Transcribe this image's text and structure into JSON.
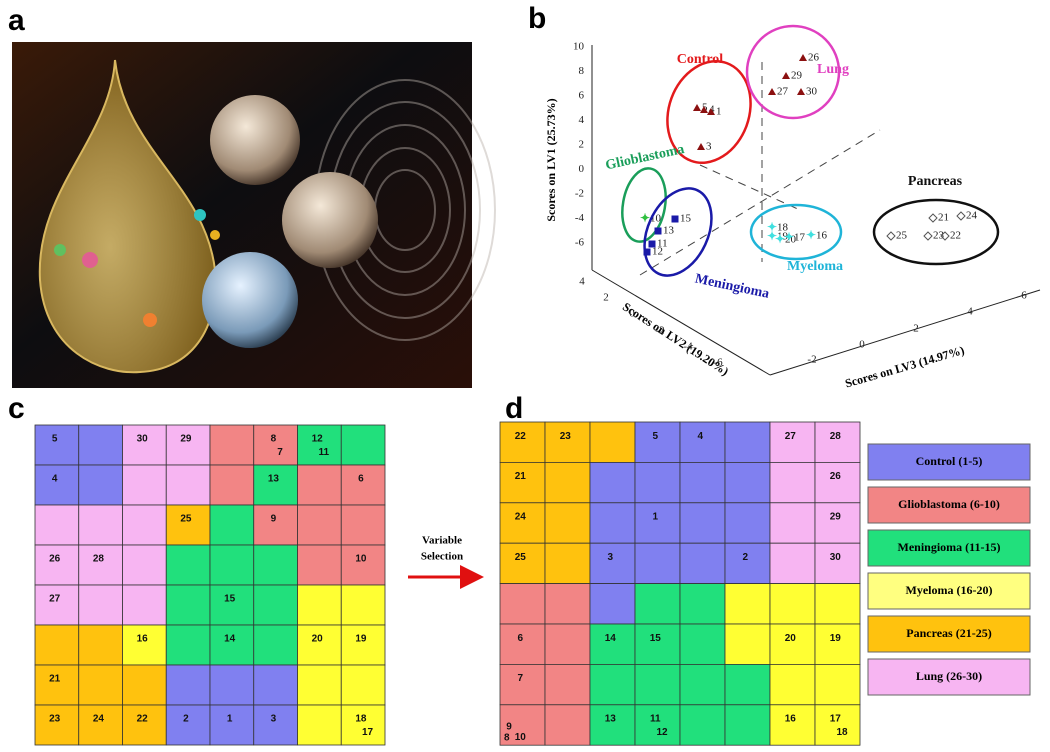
{
  "panels": {
    "a": {
      "label": "a"
    },
    "b": {
      "label": "b",
      "axes": {
        "lv1": "Scores on LV1 (25.73%)",
        "lv2": "Scores on LV2 (19.20%)",
        "lv3": "Scores on LV3 (14.97%)",
        "lv1_ticks": [
          "10",
          "8",
          "6",
          "4",
          "2",
          "0",
          "-2",
          "-4",
          "-6"
        ],
        "lv2_ticks": [
          "4",
          "2",
          "0",
          "-2",
          "-4",
          "-6"
        ],
        "lv3_ticks": [
          "-2",
          "0",
          "2",
          "4",
          "6"
        ]
      },
      "groups": [
        {
          "name": "Control",
          "color": "#e31a1c",
          "points": [
            "5",
            "4",
            "1",
            "3"
          ]
        },
        {
          "name": "Lung",
          "color": "#e040c0",
          "points": [
            "26",
            "29",
            "27",
            "30"
          ]
        },
        {
          "name": "Glioblastoma",
          "color": "#1a9e5a",
          "points": [
            "10"
          ]
        },
        {
          "name": "Meningioma",
          "color": "#1a1aa8",
          "points": [
            "15",
            "13",
            "11",
            "12"
          ]
        },
        {
          "name": "Myeloma",
          "color": "#1fb4d8",
          "points": [
            "18",
            "19",
            "20",
            "17",
            "16"
          ]
        },
        {
          "name": "Pancreas",
          "color": "#111111",
          "points": [
            "21",
            "24",
            "25",
            "23",
            "22"
          ]
        }
      ]
    },
    "c": {
      "label": "c",
      "grid": [
        [
          {
            "c": "#8080f0",
            "t": [
              "5"
            ]
          },
          {
            "c": "#8080f0"
          },
          {
            "c": "#f7b5f2",
            "t": [
              "30"
            ]
          },
          {
            "c": "#f7b5f2",
            "t": [
              "29"
            ]
          },
          {
            "c": "#f28585"
          },
          {
            "c": "#f28585",
            "t": [
              "8",
              "7"
            ]
          },
          {
            "c": "#21e07c",
            "t": [
              "12",
              "11"
            ]
          },
          {
            "c": "#21e07c"
          }
        ],
        [
          {
            "c": "#8080f0",
            "t": [
              "4"
            ]
          },
          {
            "c": "#8080f0"
          },
          {
            "c": "#f7b5f2"
          },
          {
            "c": "#f7b5f2"
          },
          {
            "c": "#f28585"
          },
          {
            "c": "#21e07c",
            "t": [
              "13"
            ]
          },
          {
            "c": "#f28585"
          },
          {
            "c": "#f28585",
            "t": [
              "6"
            ]
          }
        ],
        [
          {
            "c": "#f7b5f2"
          },
          {
            "c": "#f7b5f2"
          },
          {
            "c": "#f7b5f2"
          },
          {
            "c": "#ffc20e",
            "t": [
              "25"
            ]
          },
          {
            "c": "#21e07c"
          },
          {
            "c": "#f28585",
            "t": [
              "9"
            ]
          },
          {
            "c": "#f28585"
          },
          {
            "c": "#f28585"
          }
        ],
        [
          {
            "c": "#f7b5f2",
            "t": [
              "26"
            ]
          },
          {
            "c": "#f7b5f2",
            "t": [
              "28"
            ]
          },
          {
            "c": "#f7b5f2"
          },
          {
            "c": "#21e07c"
          },
          {
            "c": "#21e07c"
          },
          {
            "c": "#21e07c"
          },
          {
            "c": "#f28585"
          },
          {
            "c": "#f28585",
            "t": [
              "10"
            ]
          }
        ],
        [
          {
            "c": "#f7b5f2",
            "t": [
              "27"
            ]
          },
          {
            "c": "#f7b5f2"
          },
          {
            "c": "#f7b5f2"
          },
          {
            "c": "#21e07c"
          },
          {
            "c": "#21e07c",
            "t": [
              "15"
            ]
          },
          {
            "c": "#21e07c"
          },
          {
            "c": "#ffff33"
          },
          {
            "c": "#ffff33"
          }
        ],
        [
          {
            "c": "#ffc20e"
          },
          {
            "c": "#ffc20e"
          },
          {
            "c": "#ffff33",
            "t": [
              "16"
            ]
          },
          {
            "c": "#21e07c"
          },
          {
            "c": "#21e07c",
            "t": [
              "14"
            ]
          },
          {
            "c": "#21e07c"
          },
          {
            "c": "#ffff33",
            "t": [
              "20"
            ]
          },
          {
            "c": "#ffff33",
            "t": [
              "19"
            ]
          }
        ],
        [
          {
            "c": "#ffc20e",
            "t": [
              "21"
            ]
          },
          {
            "c": "#ffc20e"
          },
          {
            "c": "#ffc20e"
          },
          {
            "c": "#8080f0"
          },
          {
            "c": "#8080f0"
          },
          {
            "c": "#8080f0"
          },
          {
            "c": "#ffff33"
          },
          {
            "c": "#ffff33"
          }
        ],
        [
          {
            "c": "#ffc20e",
            "t": [
              "23"
            ]
          },
          {
            "c": "#ffc20e",
            "t": [
              "24"
            ]
          },
          {
            "c": "#ffc20e",
            "t": [
              "22"
            ]
          },
          {
            "c": "#8080f0",
            "t": [
              "2"
            ]
          },
          {
            "c": "#8080f0",
            "t": [
              "1"
            ]
          },
          {
            "c": "#8080f0",
            "t": [
              "3"
            ]
          },
          {
            "c": "#ffff33"
          },
          {
            "c": "#ffff33",
            "t": [
              "18",
              "17"
            ]
          }
        ]
      ]
    },
    "arrow": {
      "text": [
        "Variable",
        "Selection"
      ]
    },
    "d": {
      "label": "d",
      "grid": [
        [
          {
            "c": "#ffc20e",
            "t": [
              "22"
            ]
          },
          {
            "c": "#ffc20e",
            "t": [
              "23"
            ]
          },
          {
            "c": "#ffc20e"
          },
          {
            "c": "#8080f0",
            "t": [
              "5"
            ]
          },
          {
            "c": "#8080f0",
            "t": [
              "4"
            ]
          },
          {
            "c": "#8080f0"
          },
          {
            "c": "#f7b5f2",
            "t": [
              "27"
            ]
          },
          {
            "c": "#f7b5f2",
            "t": [
              "28"
            ]
          }
        ],
        [
          {
            "c": "#ffc20e",
            "t": [
              "21"
            ]
          },
          {
            "c": "#ffc20e"
          },
          {
            "c": "#8080f0"
          },
          {
            "c": "#8080f0"
          },
          {
            "c": "#8080f0"
          },
          {
            "c": "#8080f0"
          },
          {
            "c": "#f7b5f2"
          },
          {
            "c": "#f7b5f2",
            "t": [
              "26"
            ]
          }
        ],
        [
          {
            "c": "#ffc20e",
            "t": [
              "24"
            ]
          },
          {
            "c": "#ffc20e"
          },
          {
            "c": "#8080f0"
          },
          {
            "c": "#8080f0",
            "t": [
              "1"
            ]
          },
          {
            "c": "#8080f0"
          },
          {
            "c": "#8080f0"
          },
          {
            "c": "#f7b5f2"
          },
          {
            "c": "#f7b5f2",
            "t": [
              "29"
            ]
          }
        ],
        [
          {
            "c": "#ffc20e",
            "t": [
              "25"
            ]
          },
          {
            "c": "#ffc20e"
          },
          {
            "c": "#8080f0",
            "t": [
              "3"
            ]
          },
          {
            "c": "#8080f0"
          },
          {
            "c": "#8080f0"
          },
          {
            "c": "#8080f0",
            "t": [
              "2"
            ]
          },
          {
            "c": "#f7b5f2"
          },
          {
            "c": "#f7b5f2",
            "t": [
              "30"
            ]
          }
        ],
        [
          {
            "c": "#f28585"
          },
          {
            "c": "#f28585"
          },
          {
            "c": "#8080f0"
          },
          {
            "c": "#21e07c"
          },
          {
            "c": "#21e07c"
          },
          {
            "c": "#ffff33"
          },
          {
            "c": "#ffff33"
          },
          {
            "c": "#ffff33"
          }
        ],
        [
          {
            "c": "#f28585",
            "t": [
              "6"
            ]
          },
          {
            "c": "#f28585"
          },
          {
            "c": "#21e07c",
            "t": [
              "14"
            ]
          },
          {
            "c": "#21e07c",
            "t": [
              "15"
            ]
          },
          {
            "c": "#21e07c"
          },
          {
            "c": "#ffff33"
          },
          {
            "c": "#ffff33",
            "t": [
              "20"
            ]
          },
          {
            "c": "#ffff33",
            "t": [
              "19"
            ]
          }
        ],
        [
          {
            "c": "#f28585",
            "t": [
              "7"
            ]
          },
          {
            "c": "#f28585"
          },
          {
            "c": "#21e07c"
          },
          {
            "c": "#21e07c"
          },
          {
            "c": "#21e07c"
          },
          {
            "c": "#21e07c"
          },
          {
            "c": "#ffff33"
          },
          {
            "c": "#ffff33"
          }
        ],
        [
          {
            "c": "#f28585",
            "t": [
              "9",
              "8",
              "10"
            ]
          },
          {
            "c": "#f28585"
          },
          {
            "c": "#21e07c",
            "t": [
              "13"
            ]
          },
          {
            "c": "#21e07c",
            "t": [
              "11",
              "12"
            ]
          },
          {
            "c": "#21e07c"
          },
          {
            "c": "#21e07c"
          },
          {
            "c": "#ffff33",
            "t": [
              "16"
            ]
          },
          {
            "c": "#ffff33",
            "t": [
              "17",
              "18"
            ]
          }
        ]
      ],
      "legend": [
        {
          "text": "Control (1-5)",
          "color": "#8080f0"
        },
        {
          "text": "Glioblastoma (6-10)",
          "color": "#f28585"
        },
        {
          "text": "Meningioma (11-15)",
          "color": "#21e07c"
        },
        {
          "text": "Myeloma (16-20)",
          "color": "#ffff80"
        },
        {
          "text": "Pancreas (21-25)",
          "color": "#ffc20e"
        },
        {
          "text": "Lung (26-30)",
          "color": "#f7b5f2"
        }
      ]
    }
  }
}
